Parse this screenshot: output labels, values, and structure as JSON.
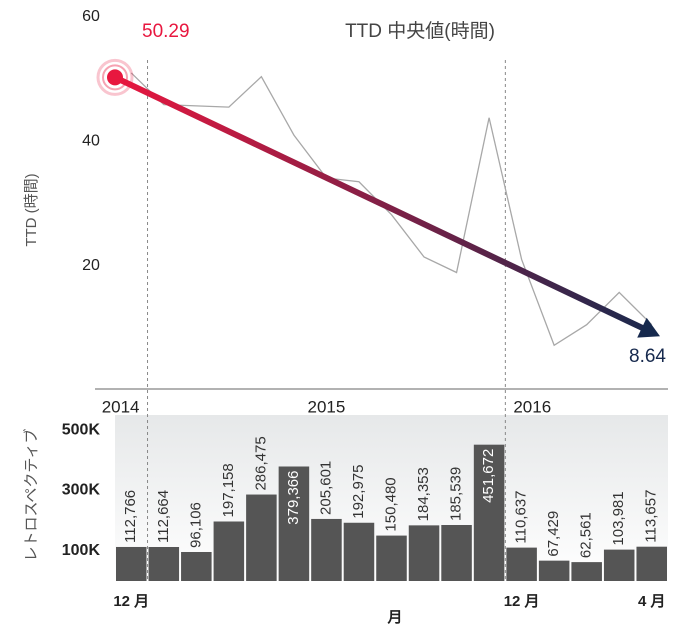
{
  "chart_data": [
    {
      "type": "line",
      "title": "TTD 中央値(時間)",
      "y_label": "TTD (時間)",
      "series": [
        {
          "name": "TTD",
          "color": "#a8a8a8",
          "values": [
            51,
            45.9,
            45.7,
            45.5,
            50.4,
            41,
            34.1,
            33.5,
            28.2,
            21.4,
            18.9,
            43.8,
            21,
            7.2,
            10.5,
            15.7,
            10.5
          ]
        }
      ],
      "trend": {
        "start": 50.29,
        "end": 8.64,
        "start_color": "#e8173f",
        "end_color": "#16294d"
      },
      "years": [
        "2014",
        "2015",
        "2016"
      ],
      "ylim": [
        0,
        60
      ],
      "yticks": [
        20,
        40,
        60
      ]
    },
    {
      "type": "bar",
      "x_label": "月",
      "y_label": "レトロスペクティブ",
      "color": "#555555",
      "categories": [
        "12 月",
        null,
        null,
        null,
        null,
        null,
        null,
        null,
        null,
        null,
        null,
        null,
        "12 月",
        null,
        null,
        null,
        "4 月"
      ],
      "values": [
        112766,
        112664,
        96106,
        197158,
        286475,
        379366,
        205601,
        192975,
        150480,
        184353,
        185539,
        451672,
        110637,
        67429,
        62561,
        103981,
        113657
      ],
      "value_labels": [
        "112,766",
        "112,664",
        "96,106",
        "197,158",
        "286,475",
        "379,366",
        "205,601",
        "192,975",
        "150,480",
        "184,353",
        "185,539",
        "451,672",
        "110,637",
        "67,429",
        "62,561",
        "103,981",
        "113,657"
      ],
      "ylim": [
        0,
        550000
      ],
      "yticks": [
        {
          "value": 100000,
          "label": "100K"
        },
        {
          "value": 300000,
          "label": "300K"
        },
        {
          "value": 500000,
          "label": "500K"
        }
      ]
    }
  ]
}
